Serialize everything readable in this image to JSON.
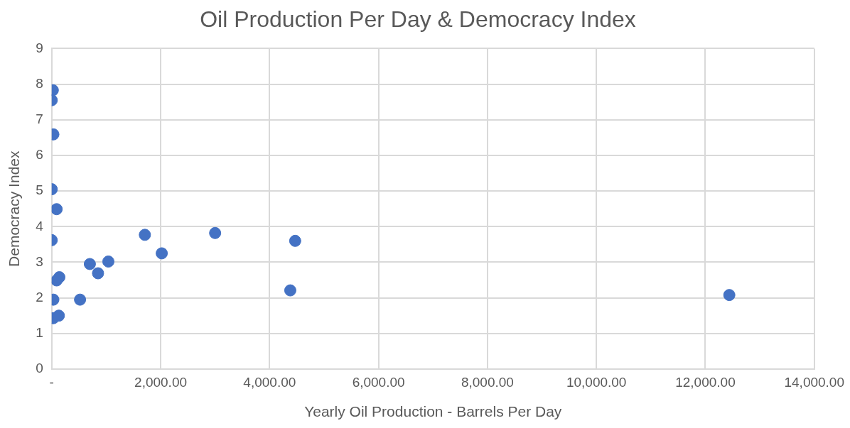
{
  "chart_data": {
    "type": "scatter",
    "title": "Oil Production Per Day & Democracy Index",
    "xlabel": "Yearly Oil Production - Barrels Per Day",
    "ylabel": "Democracy Index",
    "x": [
      20,
      0,
      30,
      0,
      90,
      0,
      90,
      140,
      30,
      520,
      30,
      130,
      700,
      850,
      1040,
      1710,
      2020,
      3000,
      4380,
      4470,
      12440
    ],
    "series": [
      {
        "color": "#4472c4",
        "values": [
          7.83,
          7.55,
          6.59,
          5.05,
          4.49,
          3.62,
          2.49,
          2.58,
          1.95,
          1.95,
          1.43,
          1.5,
          2.95,
          2.69,
          3.02,
          3.77,
          3.25,
          3.82,
          2.21,
          3.6,
          2.08
        ]
      }
    ],
    "xlim": [
      0,
      14000
    ],
    "xticks": [
      {
        "value": 0,
        "label": "-"
      },
      {
        "value": 2000,
        "label": "2,000.00"
      },
      {
        "value": 4000,
        "label": "4,000.00"
      },
      {
        "value": 6000,
        "label": "6,000.00"
      },
      {
        "value": 8000,
        "label": "8,000.00"
      },
      {
        "value": 10000,
        "label": "10,000.00"
      },
      {
        "value": 12000,
        "label": "12,000.00"
      },
      {
        "value": 14000,
        "label": "14,000.00"
      }
    ],
    "ylim": [
      0,
      9
    ],
    "yticks": [
      0,
      1,
      2,
      3,
      4,
      5,
      6,
      7,
      8,
      9
    ],
    "grid": true,
    "legend": false,
    "marker": "circle"
  }
}
